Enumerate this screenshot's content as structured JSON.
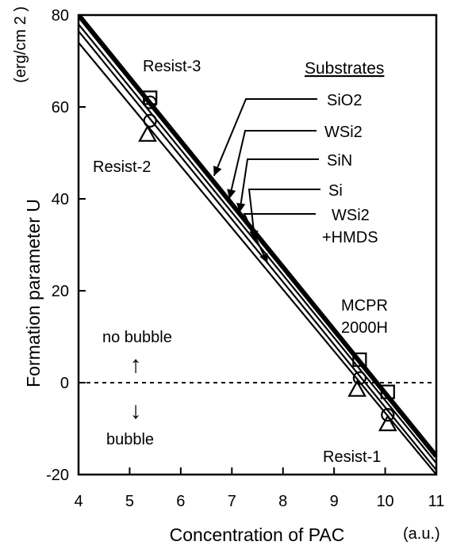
{
  "chart_data": {
    "type": "line",
    "title": "",
    "xlabel": "Concentration of PAC",
    "xunit": "(a.u.)",
    "ylabel": "Formation parameter  U",
    "yunit": "(erg/cm 2 )",
    "xlim": [
      4,
      11
    ],
    "ylim": [
      -20,
      80
    ],
    "xticks": [
      4,
      5,
      6,
      7,
      8,
      9,
      10,
      11
    ],
    "yticks": [
      -20,
      0,
      20,
      40,
      60,
      80
    ],
    "grid": false,
    "legend_title": "Substrates",
    "substrates": [
      "SiO2",
      "WSi2",
      "SiN",
      "Si",
      "WSi2\n+HMDS"
    ],
    "substrate_arrow_targets": [
      {
        "x": 6.65,
        "y": 45
      },
      {
        "x": 6.95,
        "y": 40
      },
      {
        "x": 7.15,
        "y": 37
      },
      {
        "x": 7.45,
        "y": 31
      },
      {
        "x": 7.7,
        "y": 26
      }
    ],
    "zero_line": {
      "y": 0,
      "style": "dashed"
    },
    "series": [
      {
        "x": [
          4.0,
          11.0
        ],
        "y": [
          80.0,
          -16.0
        ],
        "weight": "heavy"
      },
      {
        "x": [
          4.0,
          11.0
        ],
        "y": [
          78.0,
          -17.5
        ],
        "weight": "thin"
      },
      {
        "x": [
          4.0,
          11.0
        ],
        "y": [
          76.5,
          -19.0
        ],
        "weight": "thin"
      },
      {
        "x": [
          4.0,
          11.0
        ],
        "y": [
          74.0,
          -20.0
        ],
        "weight": "thin"
      }
    ],
    "markers": [
      {
        "shape": "square",
        "x": 5.4,
        "y": 62
      },
      {
        "shape": "circle",
        "x": 5.4,
        "y": 61
      },
      {
        "shape": "circle",
        "x": 5.4,
        "y": 57
      },
      {
        "shape": "triangle",
        "x": 5.35,
        "y": 54
      },
      {
        "shape": "square",
        "x": 9.5,
        "y": 5
      },
      {
        "shape": "circle",
        "x": 9.5,
        "y": 1
      },
      {
        "shape": "triangle",
        "x": 9.45,
        "y": -1.5
      },
      {
        "shape": "square",
        "x": 10.05,
        "y": -2
      },
      {
        "shape": "circle",
        "x": 10.05,
        "y": -7
      },
      {
        "shape": "triangle",
        "x": 10.05,
        "y": -9
      }
    ],
    "annotations": {
      "resist3": "Resist-3",
      "resist2": "Resist-2",
      "resist1": "Resist-1",
      "mcpr1": "MCPR",
      "mcpr2": "2000H",
      "no_bubble": "no bubble",
      "bubble": "bubble",
      "up_arrow": "↑",
      "down_arrow": "↓"
    }
  }
}
